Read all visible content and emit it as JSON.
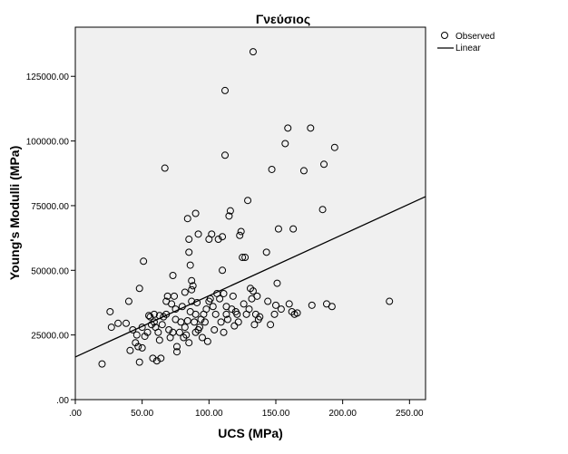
{
  "chart_data": {
    "type": "scatter",
    "title": "Γνεύσιος",
    "xlabel": "UCS (MPa)",
    "ylabel": "Young's Modulli (MPa)",
    "xlim": [
      0,
      262
    ],
    "ylim": [
      0,
      144000
    ],
    "x_ticks": [
      0,
      50,
      100,
      150,
      200,
      250
    ],
    "x_tick_labels": [
      ".00",
      "50.00",
      "100.00",
      "150.00",
      "200.00",
      "250.00"
    ],
    "y_ticks": [
      0,
      25000,
      50000,
      75000,
      100000,
      125000
    ],
    "y_tick_labels": [
      ".00",
      "25000.00",
      "50000.00",
      "75000.00",
      "100000.00",
      "125000.00"
    ],
    "grid": false,
    "legend_position": "top-right",
    "legend": [
      {
        "label": "Observed",
        "marker": "circle"
      },
      {
        "label": "Linear",
        "marker": "line"
      }
    ],
    "series": [
      {
        "name": "Observed",
        "points": [
          [
            20,
            13800
          ],
          [
            26,
            34000
          ],
          [
            27,
            28000
          ],
          [
            32,
            29500
          ],
          [
            38,
            29500
          ],
          [
            40,
            38000
          ],
          [
            41,
            19000
          ],
          [
            43,
            27000
          ],
          [
            45,
            22000
          ],
          [
            46,
            25000
          ],
          [
            47,
            20500
          ],
          [
            48,
            43000
          ],
          [
            48,
            14500
          ],
          [
            50,
            28000
          ],
          [
            50,
            20000
          ],
          [
            51,
            53500
          ],
          [
            52,
            24500
          ],
          [
            54,
            26000
          ],
          [
            55,
            32500
          ],
          [
            56,
            32000
          ],
          [
            57,
            29000
          ],
          [
            58,
            16000
          ],
          [
            59,
            33000
          ],
          [
            59,
            30000
          ],
          [
            60,
            28000
          ],
          [
            61,
            15000
          ],
          [
            62,
            26000
          ],
          [
            63,
            23000
          ],
          [
            63,
            32500
          ],
          [
            64,
            16000
          ],
          [
            65,
            29000
          ],
          [
            66,
            32000
          ],
          [
            67,
            89500
          ],
          [
            68,
            38000
          ],
          [
            68,
            33000
          ],
          [
            69,
            40000
          ],
          [
            70,
            27000
          ],
          [
            71,
            24000
          ],
          [
            72,
            37000
          ],
          [
            73,
            26000
          ],
          [
            73,
            48000
          ],
          [
            74,
            40000
          ],
          [
            75,
            35000
          ],
          [
            75,
            31000
          ],
          [
            76,
            20500
          ],
          [
            76,
            18500
          ],
          [
            78,
            26000
          ],
          [
            79,
            30000
          ],
          [
            80,
            36000
          ],
          [
            81,
            24000
          ],
          [
            82,
            41500
          ],
          [
            82,
            28000
          ],
          [
            83,
            25000
          ],
          [
            84,
            30500
          ],
          [
            84,
            70000
          ],
          [
            85,
            22000
          ],
          [
            85,
            62000
          ],
          [
            85,
            57000
          ],
          [
            86,
            34000
          ],
          [
            86,
            52000
          ],
          [
            87,
            42500
          ],
          [
            87,
            46000
          ],
          [
            87,
            38000
          ],
          [
            88,
            44000
          ],
          [
            89,
            30000
          ],
          [
            90,
            72000
          ],
          [
            90,
            33000
          ],
          [
            90,
            26000
          ],
          [
            91,
            37500
          ],
          [
            92,
            27000
          ],
          [
            92,
            64000
          ],
          [
            93,
            28000
          ],
          [
            94,
            31000
          ],
          [
            95,
            24000
          ],
          [
            96,
            33000
          ],
          [
            97,
            30000
          ],
          [
            98,
            35000
          ],
          [
            99,
            22500
          ],
          [
            100,
            62000
          ],
          [
            100,
            38000
          ],
          [
            101,
            39000
          ],
          [
            102,
            64000
          ],
          [
            103,
            36000
          ],
          [
            104,
            27000
          ],
          [
            105,
            33000
          ],
          [
            106,
            41000
          ],
          [
            107,
            62000
          ],
          [
            108,
            39000
          ],
          [
            109,
            30000
          ],
          [
            110,
            63000
          ],
          [
            110,
            50000
          ],
          [
            111,
            41000
          ],
          [
            111,
            26000
          ],
          [
            112,
            94500
          ],
          [
            112,
            119500
          ],
          [
            113,
            36000
          ],
          [
            113,
            33000
          ],
          [
            114,
            31000
          ],
          [
            115,
            71000
          ],
          [
            116,
            73000
          ],
          [
            117,
            35000
          ],
          [
            118,
            40000
          ],
          [
            119,
            28500
          ],
          [
            120,
            34000
          ],
          [
            121,
            33000
          ],
          [
            122,
            30000
          ],
          [
            123,
            63500
          ],
          [
            124,
            65000
          ],
          [
            125,
            55000
          ],
          [
            126,
            37000
          ],
          [
            127,
            55000
          ],
          [
            128,
            33000
          ],
          [
            129,
            77000
          ],
          [
            130,
            35000
          ],
          [
            131,
            43000
          ],
          [
            132,
            39000
          ],
          [
            133,
            42000
          ],
          [
            133,
            134500
          ],
          [
            134,
            29000
          ],
          [
            135,
            33000
          ],
          [
            136,
            40000
          ],
          [
            137,
            31000
          ],
          [
            138,
            32000
          ],
          [
            143,
            57000
          ],
          [
            144,
            38000
          ],
          [
            146,
            29000
          ],
          [
            147,
            89000
          ],
          [
            149,
            33000
          ],
          [
            150,
            36500
          ],
          [
            151,
            45000
          ],
          [
            152,
            66000
          ],
          [
            154,
            35000
          ],
          [
            157,
            99000
          ],
          [
            159,
            105000
          ],
          [
            160,
            37000
          ],
          [
            162,
            34000
          ],
          [
            163,
            66000
          ],
          [
            164,
            33000
          ],
          [
            166,
            33500
          ],
          [
            171,
            88500
          ],
          [
            176,
            105000
          ],
          [
            177,
            36500
          ],
          [
            185,
            73500
          ],
          [
            186,
            91000
          ],
          [
            188,
            37000
          ],
          [
            192,
            36000
          ],
          [
            194,
            97500
          ],
          [
            235,
            38000
          ]
        ]
      },
      {
        "name": "Linear",
        "line": [
          [
            0,
            16500
          ],
          [
            262,
            78500
          ]
        ]
      }
    ]
  }
}
